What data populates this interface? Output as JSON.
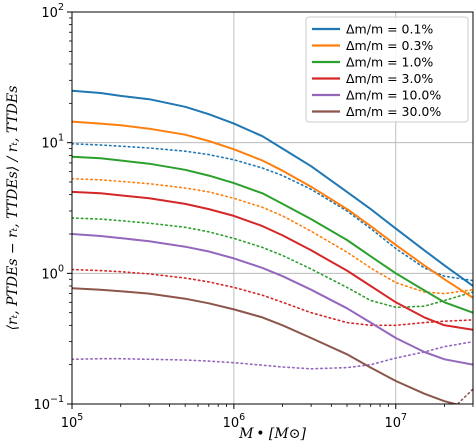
{
  "chart_data": {
    "type": "line",
    "title": "",
    "xlabel": "M • [M⊙]",
    "ylabel": "⟨rₜ, PTDEs − rₜ, TTDEs⟩ / rₜ, TTDEs",
    "xscale": "log",
    "yscale": "log",
    "xlim": [
      100000,
      30000000
    ],
    "ylim": [
      0.1,
      100
    ],
    "grid": true,
    "legend_position": "top-right",
    "x_ticks": [
      {
        "value": 100000,
        "base": "10",
        "exp": "5"
      },
      {
        "value": 1000000,
        "base": "10",
        "exp": "6"
      },
      {
        "value": 10000000,
        "base": "10",
        "exp": "7"
      }
    ],
    "y_ticks": [
      {
        "value": 0.1,
        "base": "10",
        "exp": "−1"
      },
      {
        "value": 1,
        "base": "10",
        "exp": "0"
      },
      {
        "value": 10,
        "base": "10",
        "exp": "1"
      },
      {
        "value": 100,
        "base": "10",
        "exp": "2"
      }
    ],
    "x": [
      100000,
      150000,
      200000,
      300000,
      500000,
      700000,
      1000000,
      1500000,
      2000000,
      3000000,
      5000000,
      7000000,
      10000000,
      15000000,
      20000000,
      30000000
    ],
    "series": [
      {
        "name": "Δm/m = 0.1%",
        "color": "#1f77b4",
        "linestyle": "solid",
        "values": [
          25,
          24,
          22.8,
          21.5,
          18.8,
          16.5,
          14,
          11.2,
          9,
          6.6,
          4.2,
          3.1,
          2.2,
          1.5,
          1.15,
          0.8
        ]
      },
      {
        "name": "Δm/m = 0.3%",
        "color": "#ff7f0e",
        "linestyle": "solid",
        "values": [
          14.5,
          14,
          13.6,
          12.8,
          11.5,
          10.3,
          8.9,
          7.3,
          6.1,
          4.6,
          3.1,
          2.3,
          1.65,
          1.15,
          0.9,
          0.65
        ]
      },
      {
        "name": "Δm/m = 1.0%",
        "color": "#2ca02c",
        "linestyle": "solid",
        "values": [
          7.8,
          7.6,
          7.3,
          6.9,
          6.2,
          5.6,
          4.9,
          4.1,
          3.4,
          2.6,
          1.8,
          1.35,
          1,
          0.74,
          0.6,
          0.5
        ]
      },
      {
        "name": "Δm/m = 3.0%",
        "color": "#d62728",
        "linestyle": "solid",
        "values": [
          4.2,
          4.1,
          3.95,
          3.75,
          3.4,
          3.1,
          2.75,
          2.3,
          1.95,
          1.5,
          1.05,
          0.8,
          0.6,
          0.46,
          0.4,
          0.37
        ]
      },
      {
        "name": "Δm/m = 10.0%",
        "color": "#9467bd",
        "linestyle": "solid",
        "values": [
          2,
          1.93,
          1.86,
          1.76,
          1.6,
          1.47,
          1.3,
          1.1,
          0.95,
          0.75,
          0.54,
          0.42,
          0.32,
          0.25,
          0.22,
          0.2
        ]
      },
      {
        "name": "Δm/m = 30.0%",
        "color": "#8c564b",
        "linestyle": "solid",
        "values": [
          0.77,
          0.75,
          0.73,
          0.7,
          0.64,
          0.59,
          0.53,
          0.46,
          0.4,
          0.32,
          0.24,
          0.19,
          0.15,
          0.12,
          0.105,
          0.092
        ]
      },
      {
        "name": "",
        "color": "#1f77b4",
        "linestyle": "dotted",
        "values": [
          9.8,
          9.6,
          9.4,
          9.1,
          8.6,
          8.1,
          7.4,
          6.4,
          5.6,
          4.4,
          3,
          2.2,
          1.55,
          1.1,
          0.95,
          0.88
        ]
      },
      {
        "name": "",
        "color": "#ff7f0e",
        "linestyle": "dotted",
        "values": [
          5.3,
          5.2,
          5.05,
          4.85,
          4.5,
          4.2,
          3.75,
          3.2,
          2.75,
          2.1,
          1.45,
          1.1,
          0.85,
          0.72,
          0.7,
          0.75
        ]
      },
      {
        "name": "",
        "color": "#2ca02c",
        "linestyle": "dotted",
        "values": [
          2.65,
          2.6,
          2.53,
          2.42,
          2.25,
          2.08,
          1.85,
          1.58,
          1.37,
          1.08,
          0.78,
          0.62,
          0.55,
          0.56,
          0.62,
          0.72
        ]
      },
      {
        "name": "",
        "color": "#d62728",
        "linestyle": "dotted",
        "values": [
          1.07,
          1.05,
          1.03,
          0.99,
          0.92,
          0.86,
          0.78,
          0.68,
          0.6,
          0.5,
          0.42,
          0.4,
          0.4,
          0.42,
          0.43,
          0.44
        ]
      },
      {
        "name": "",
        "color": "#9467bd",
        "linestyle": "dotted",
        "values": [
          0.22,
          0.222,
          0.222,
          0.22,
          0.217,
          0.213,
          0.207,
          0.198,
          0.192,
          0.186,
          0.19,
          0.2,
          0.225,
          0.25,
          0.275,
          0.3
        ]
      },
      {
        "name": "",
        "color": "#8c564b",
        "linestyle": "dotted",
        "values": [
          null,
          null,
          null,
          null,
          null,
          null,
          null,
          null,
          null,
          null,
          null,
          null,
          null,
          null,
          0.08,
          0.13
        ]
      }
    ]
  }
}
